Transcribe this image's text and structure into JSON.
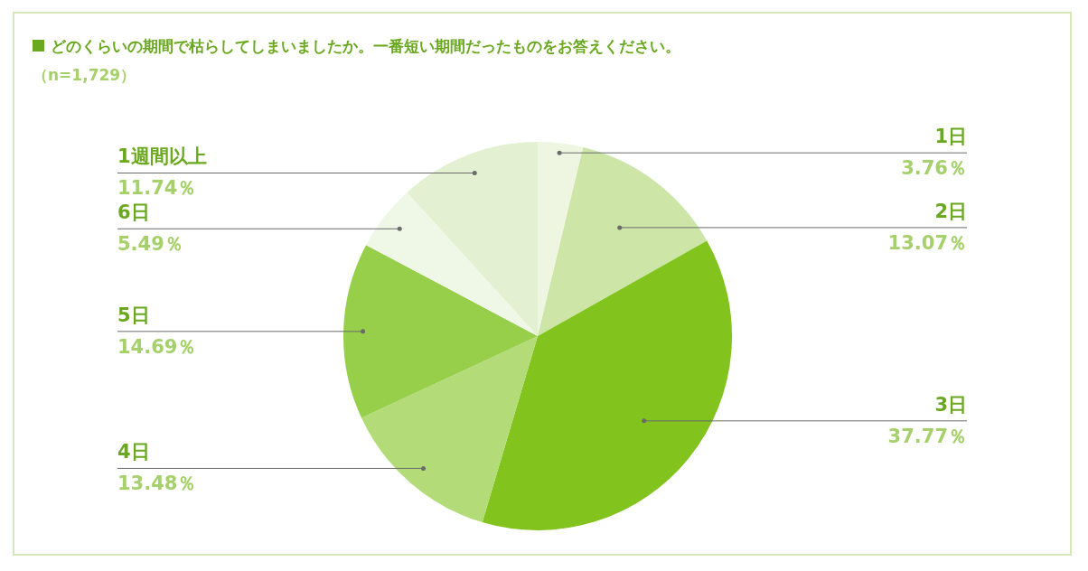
{
  "chart_data": {
    "type": "pie",
    "title": "どのくらいの期間で枯らしてしまいましたか。一番短い期間だったものをお答えください。",
    "subtitle": "（n=1,729）",
    "categories": [
      "1日",
      "2日",
      "3日",
      "4日",
      "5日",
      "6日",
      "1週間以上"
    ],
    "values": [
      3.76,
      13.07,
      37.77,
      13.48,
      14.69,
      5.49,
      11.74
    ],
    "value_labels": [
      "3.76％",
      "13.07％",
      "37.77％",
      "13.48％",
      "14.69％",
      "5.49％",
      "11.74％"
    ],
    "colors": [
      "#eef6e2",
      "#cde6a8",
      "#82c31e",
      "#b3dc78",
      "#97cf4b",
      "#eff7e6",
      "#e3f1d2"
    ],
    "legend": false
  }
}
